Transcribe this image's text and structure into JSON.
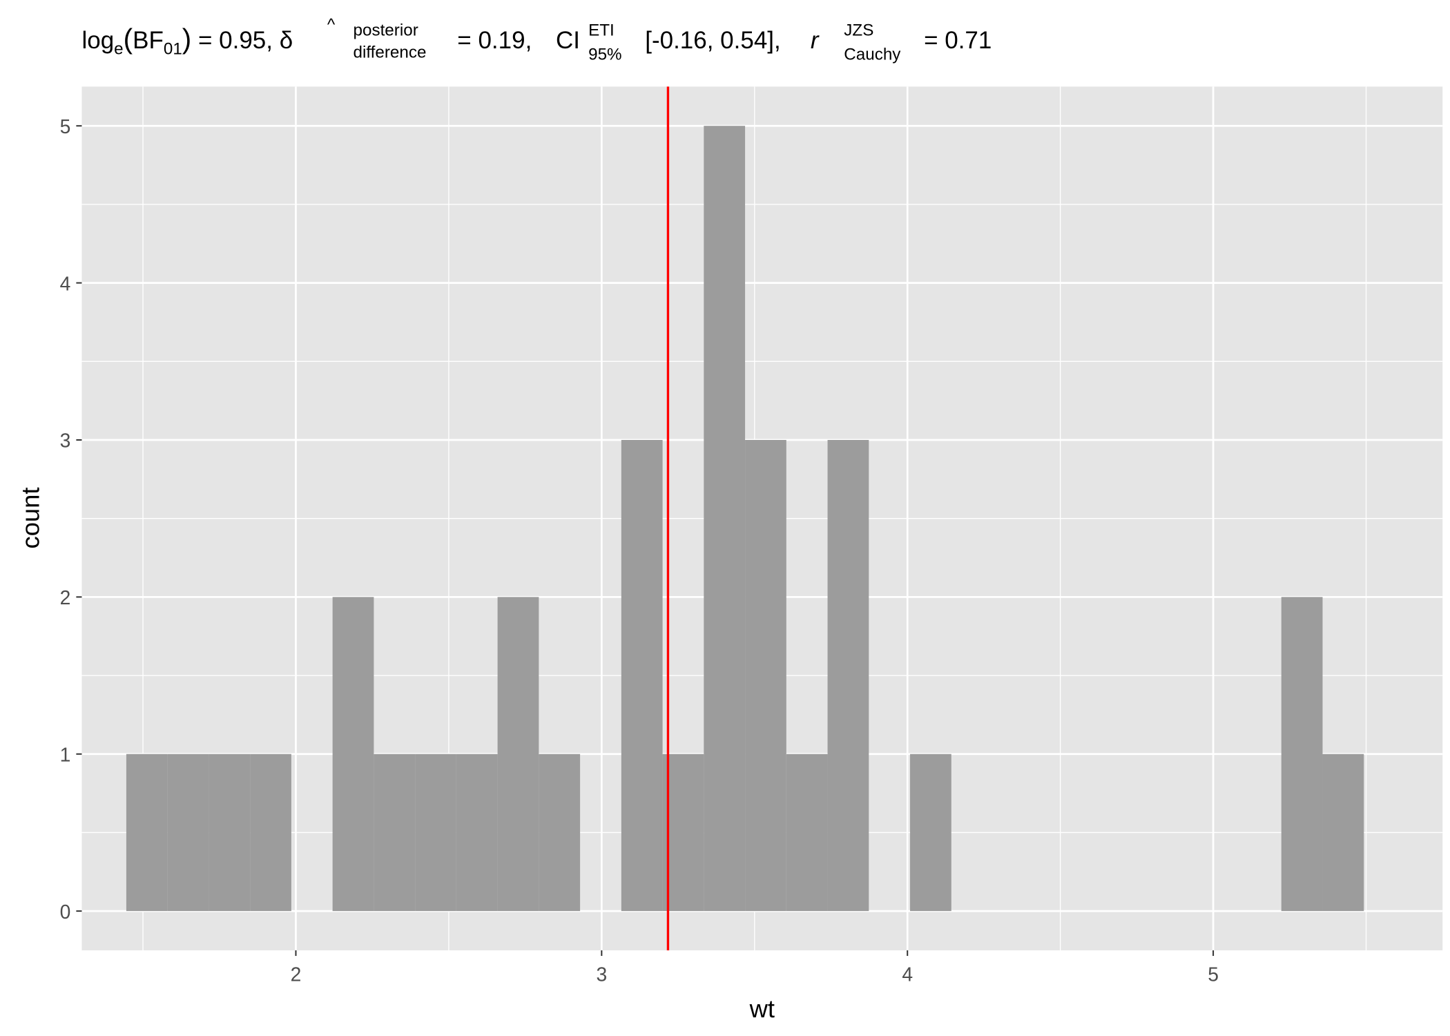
{
  "chart_data": {
    "type": "bar",
    "subtype": "histogram",
    "title": {
      "log_label": "log",
      "log_sub": "e",
      "bf_label": "BF",
      "bf_sub": "01",
      "bf_value": "= 0.95,",
      "delta_symbol": "δ",
      "delta_hat": "^",
      "delta_sup": "posterior",
      "delta_sub": "difference",
      "delta_value": "= 0.19,",
      "ci_label": "CI",
      "ci_sup": "ETI",
      "ci_sub": "95%",
      "ci_value": "[-0.16, 0.54],",
      "r_label": "r",
      "r_sup": "JZS",
      "r_sub": "Cauchy",
      "r_value": "= 0.71"
    },
    "xlabel": "wt",
    "ylabel": "count",
    "xlim": [
      1.3,
      5.75
    ],
    "ylim": [
      -0.25,
      5.25
    ],
    "x_ticks": [
      2,
      3,
      4,
      5
    ],
    "x_tick_labels": [
      "2",
      "3",
      "4",
      "5"
    ],
    "y_ticks": [
      0,
      1,
      2,
      3,
      4,
      5
    ],
    "y_tick_labels": [
      "0",
      "1",
      "2",
      "3",
      "4",
      "5"
    ],
    "bin_first_center": 1.513,
    "bin_width": 0.1349,
    "counts": [
      1,
      1,
      1,
      1,
      0,
      2,
      1,
      1,
      1,
      2,
      1,
      0,
      3,
      1,
      5,
      3,
      1,
      3,
      0,
      1,
      0,
      0,
      0,
      0,
      0,
      0,
      0,
      0,
      2,
      1
    ],
    "mean_line": 3.217,
    "bar_color": "#999999",
    "mean_line_color": "#ff0000",
    "panel_background": "#e5e5e5",
    "grid": true
  }
}
